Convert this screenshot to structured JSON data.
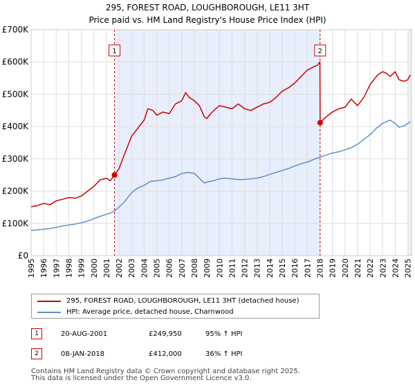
{
  "chart_data": {
    "type": "line",
    "title": "295, FOREST ROAD, LOUGHBOROUGH, LE11 3HT",
    "subtitle": "Price paid vs. HM Land Registry's House Price Index (HPI)",
    "xlabel": "",
    "ylabel": "",
    "xlim": [
      1995,
      2025.3
    ],
    "ylim": [
      0,
      700000
    ],
    "x_ticks": [
      "1995",
      "1996",
      "1997",
      "1998",
      "1999",
      "2000",
      "2001",
      "2002",
      "2003",
      "2004",
      "2005",
      "2006",
      "2007",
      "2008",
      "2009",
      "2010",
      "2011",
      "2012",
      "2013",
      "2014",
      "2015",
      "2016",
      "2017",
      "2018",
      "2019",
      "2020",
      "2021",
      "2022",
      "2023",
      "2024",
      "2025"
    ],
    "y_ticks": [
      {
        "value": 0,
        "label": "£0"
      },
      {
        "value": 100000,
        "label": "£100K"
      },
      {
        "value": 200000,
        "label": "£200K"
      },
      {
        "value": 300000,
        "label": "£300K"
      },
      {
        "value": 400000,
        "label": "£400K"
      },
      {
        "value": 500000,
        "label": "£500K"
      },
      {
        "value": 600000,
        "label": "£600K"
      },
      {
        "value": 700000,
        "label": "£700K"
      }
    ],
    "shaded_range": [
      2001.64,
      2018.02
    ],
    "series": [
      {
        "name": "295, FOREST ROAD, LOUGHBOROUGH, LE11 3HT (detached house)",
        "color": "#cc0000",
        "x": [
          1995,
          1995.5,
          1996,
          1996.5,
          1997,
          1997.5,
          1998,
          1998.5,
          1999,
          1999.5,
          2000,
          2000.5,
          2001,
          2001.3,
          2001.64,
          2002,
          2002.5,
          2003,
          2003.5,
          2004,
          2004.3,
          2004.7,
          2005,
          2005.5,
          2006,
          2006.5,
          2007,
          2007.3,
          2007.6,
          2008,
          2008.4,
          2008.8,
          2009,
          2009.3,
          2009.7,
          2010,
          2010.5,
          2011,
          2011.5,
          2012,
          2012.5,
          2013,
          2013.5,
          2014,
          2014.5,
          2015,
          2015.5,
          2016,
          2016.5,
          2017,
          2017.5,
          2017.8,
          2018,
          2018.02,
          2018.5,
          2019,
          2019.5,
          2020,
          2020.5,
          2021,
          2021.5,
          2022,
          2022.3,
          2022.6,
          2023,
          2023.3,
          2023.6,
          2024,
          2024.3,
          2024.7,
          2025,
          2025.2
        ],
        "y": [
          152000,
          155000,
          162000,
          158000,
          170000,
          175000,
          180000,
          178000,
          185000,
          200000,
          215000,
          235000,
          240000,
          232000,
          249950,
          270000,
          320000,
          370000,
          395000,
          420000,
          455000,
          450000,
          435000,
          445000,
          440000,
          470000,
          480000,
          505000,
          490000,
          480000,
          465000,
          430000,
          425000,
          440000,
          455000,
          465000,
          460000,
          455000,
          470000,
          455000,
          450000,
          460000,
          470000,
          475000,
          490000,
          510000,
          520000,
          535000,
          555000,
          575000,
          585000,
          590000,
          600000,
          412000,
          430000,
          445000,
          455000,
          460000,
          485000,
          465000,
          490000,
          530000,
          545000,
          560000,
          570000,
          565000,
          555000,
          570000,
          545000,
          540000,
          545000,
          560000
        ]
      },
      {
        "name": "HPI: Average price, detached house, Charnwood",
        "color": "#5b8fcf",
        "x": [
          1995,
          1995.5,
          1996,
          1996.5,
          1997,
          1997.5,
          1998,
          1998.5,
          1999,
          1999.5,
          2000,
          2000.5,
          2001,
          2001.5,
          2002,
          2002.5,
          2003,
          2003.5,
          2004,
          2004.5,
          2005,
          2005.5,
          2006,
          2006.5,
          2007,
          2007.5,
          2008,
          2008.4,
          2008.8,
          2009,
          2009.5,
          2010,
          2010.5,
          2011,
          2011.5,
          2012,
          2012.5,
          2013,
          2013.5,
          2014,
          2014.5,
          2015,
          2015.5,
          2016,
          2016.5,
          2017,
          2017.5,
          2018,
          2018.5,
          2019,
          2019.5,
          2020,
          2020.5,
          2021,
          2021.5,
          2022,
          2022.5,
          2023,
          2023.3,
          2023.6,
          2024,
          2024.3,
          2024.7,
          2025,
          2025.2
        ],
        "y": [
          78000,
          80000,
          82000,
          84000,
          88000,
          92000,
          95000,
          98000,
          102000,
          107000,
          115000,
          122000,
          128000,
          135000,
          150000,
          170000,
          195000,
          210000,
          218000,
          230000,
          232000,
          235000,
          240000,
          245000,
          255000,
          258000,
          255000,
          240000,
          225000,
          228000,
          232000,
          238000,
          240000,
          238000,
          236000,
          236000,
          238000,
          240000,
          245000,
          252000,
          258000,
          264000,
          270000,
          278000,
          285000,
          290000,
          298000,
          305000,
          312000,
          318000,
          322000,
          328000,
          335000,
          345000,
          360000,
          375000,
          395000,
          410000,
          415000,
          420000,
          410000,
          398000,
          402000,
          410000,
          415000
        ]
      }
    ],
    "annotations": [
      {
        "label": "1",
        "x": 2001.64,
        "y": 249950
      },
      {
        "label": "2",
        "x": 2018.02,
        "y": 412000
      }
    ]
  },
  "legend": {
    "items": [
      {
        "label": "295, FOREST ROAD, LOUGHBOROUGH, LE11 3HT (detached house)",
        "color": "#cc0000"
      },
      {
        "label": "HPI: Average price, detached house, Charnwood",
        "color": "#5b8fcf"
      }
    ]
  },
  "transactions": [
    {
      "num": "1",
      "date": "20-AUG-2001",
      "price": "£249,950",
      "hpi": "95% ↑ HPI"
    },
    {
      "num": "2",
      "date": "08-JAN-2018",
      "price": "£412,000",
      "hpi": "36% ↑ HPI"
    }
  ],
  "footer": {
    "line1": "Contains HM Land Registry data © Crown copyright and database right 2025.",
    "line2": "This data is licensed under the Open Government Licence v3.0."
  }
}
